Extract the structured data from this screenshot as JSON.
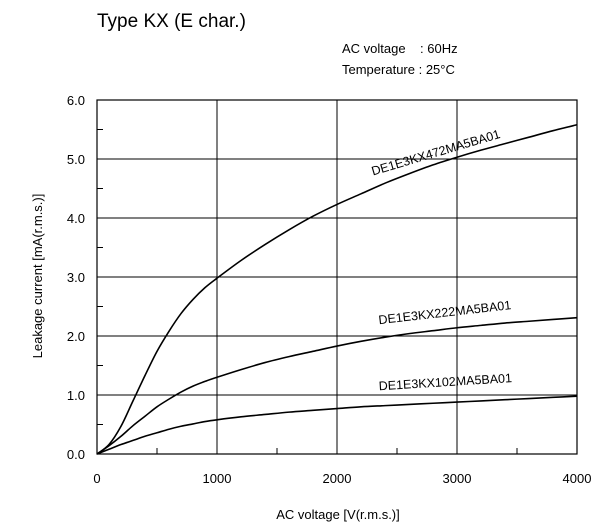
{
  "chart_data": {
    "type": "line",
    "title": "Type KX (E char.)",
    "conditions": [
      {
        "label": "AC voltage",
        "value": "60Hz",
        "text": "AC voltage    : 60Hz"
      },
      {
        "label": "Temperature",
        "value": "25°C",
        "text": "Temperature : 25°C"
      }
    ],
    "xlabel": "AC voltage [V(r.m.s.)]",
    "ylabel": "Leakage current [mA(r.m.s.)]",
    "xlim": [
      0,
      4000
    ],
    "ylim": [
      0,
      6
    ],
    "grid": true,
    "xticks": [
      0,
      1000,
      2000,
      3000,
      4000
    ],
    "yticks": [
      0,
      1,
      2,
      3,
      4,
      5,
      6
    ],
    "xtick_labels": [
      "0",
      "1000",
      "2000",
      "3000",
      "4000"
    ],
    "ytick_labels": [
      "0.0",
      "1.0",
      "2.0",
      "3.0",
      "4.0",
      "5.0",
      "6.0"
    ],
    "series": [
      {
        "name": "DE1E3KX472MA5BA01",
        "x": [
          0,
          100,
          200,
          300,
          400,
          500,
          600,
          700,
          800,
          900,
          1000,
          1200,
          1400,
          1600,
          1800,
          2000,
          2200,
          2400,
          2600,
          2800,
          3000,
          3200,
          3400,
          3600,
          3800,
          4000
        ],
        "y": [
          0,
          0.16,
          0.47,
          0.9,
          1.33,
          1.74,
          2.08,
          2.38,
          2.62,
          2.82,
          2.98,
          3.28,
          3.55,
          3.8,
          4.03,
          4.23,
          4.41,
          4.59,
          4.75,
          4.9,
          5.03,
          5.15,
          5.26,
          5.37,
          5.48,
          5.58
        ]
      },
      {
        "name": "DE1E3KX222MA5BA01",
        "x": [
          0,
          100,
          200,
          300,
          400,
          500,
          600,
          700,
          800,
          900,
          1000,
          1200,
          1400,
          1600,
          1800,
          2000,
          2200,
          2400,
          2600,
          2800,
          3000,
          3200,
          3400,
          3600,
          3800,
          4000
        ],
        "y": [
          0,
          0.14,
          0.3,
          0.48,
          0.64,
          0.8,
          0.93,
          1.05,
          1.15,
          1.23,
          1.3,
          1.43,
          1.55,
          1.65,
          1.74,
          1.83,
          1.91,
          1.98,
          2.04,
          2.09,
          2.14,
          2.18,
          2.22,
          2.25,
          2.28,
          2.31
        ]
      },
      {
        "name": "DE1E3KX102MA5BA01",
        "x": [
          0,
          100,
          200,
          300,
          400,
          500,
          600,
          700,
          800,
          900,
          1000,
          1200,
          1400,
          1600,
          1800,
          2000,
          2200,
          2400,
          2600,
          2800,
          3000,
          3200,
          3400,
          3600,
          3800,
          4000
        ],
        "y": [
          0,
          0.08,
          0.16,
          0.23,
          0.3,
          0.36,
          0.42,
          0.47,
          0.51,
          0.55,
          0.58,
          0.63,
          0.67,
          0.71,
          0.74,
          0.77,
          0.8,
          0.82,
          0.84,
          0.86,
          0.88,
          0.9,
          0.92,
          0.94,
          0.96,
          0.98
        ]
      }
    ]
  }
}
